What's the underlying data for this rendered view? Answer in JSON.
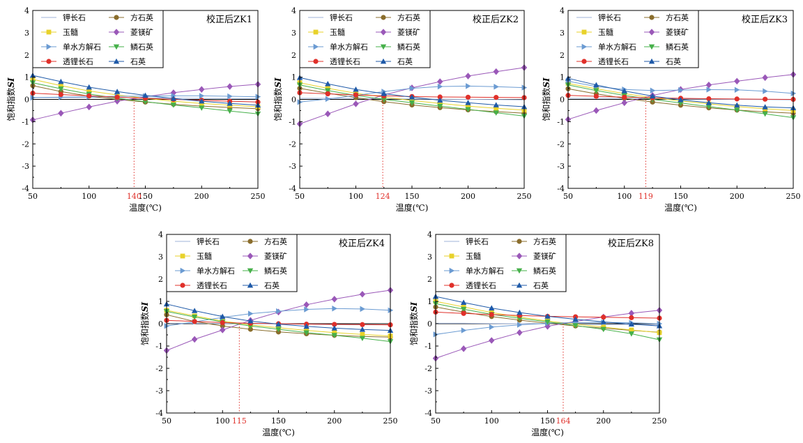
{
  "figure": {
    "xlabel": "温度(℃)",
    "ylabel_main": "饱和指数",
    "ylabel_italic": "SI"
  },
  "legend_labels": [
    "钾长石",
    "方石英",
    "玉髓",
    "菱镁矿",
    "单水方解石",
    "鳞石英",
    "透锂长石",
    "石英"
  ],
  "colors": {
    "钾长石": "#9fb3d9",
    "方石英": "#8a6d2c",
    "玉髓": "#e8d22a",
    "菱镁矿": "#9a58b8",
    "单水方解石": "#6b9bd2",
    "鳞石英": "#46b04a",
    "透锂长石": "#e0302a",
    "石英": "#1f5aa8",
    "intersection": "#e0302a"
  },
  "chart_data": [
    {
      "type": "line",
      "title": "校正后ZK1",
      "x": [
        50,
        75,
        100,
        125,
        150,
        175,
        200,
        225,
        250
      ],
      "xticks": [
        50,
        100,
        150,
        200,
        250
      ],
      "ylim": [
        -4,
        4
      ],
      "xlim": [
        50,
        250
      ],
      "intersection_x": 140,
      "series": [
        {
          "name": "钾长石",
          "values": [
            0.08,
            0.08,
            0.08,
            0.08,
            0.07,
            0.06,
            0.05,
            0.04,
            0.03
          ]
        },
        {
          "name": "方石英",
          "values": [
            0.62,
            0.35,
            0.15,
            0.0,
            -0.12,
            -0.22,
            -0.3,
            -0.36,
            -0.42
          ]
        },
        {
          "name": "玉髓",
          "values": [
            0.9,
            0.62,
            0.38,
            0.2,
            0.05,
            -0.08,
            -0.18,
            -0.26,
            -0.33
          ]
        },
        {
          "name": "菱镁矿",
          "values": [
            -0.92,
            -0.62,
            -0.34,
            -0.08,
            0.12,
            0.3,
            0.45,
            0.58,
            0.68
          ]
        },
        {
          "name": "单水方解石",
          "values": [
            0.08,
            0.1,
            0.12,
            0.14,
            0.15,
            0.16,
            0.16,
            0.14,
            0.12
          ]
        },
        {
          "name": "鳞石英",
          "values": [
            0.75,
            0.48,
            0.24,
            0.05,
            -0.1,
            -0.25,
            -0.38,
            -0.52,
            -0.65
          ]
        },
        {
          "name": "透锂长石",
          "values": [
            0.28,
            0.22,
            0.16,
            0.1,
            0.05,
            0.0,
            -0.04,
            -0.08,
            -0.12
          ]
        },
        {
          "name": "石英",
          "values": [
            1.08,
            0.8,
            0.55,
            0.35,
            0.18,
            0.04,
            -0.08,
            -0.18,
            -0.26
          ]
        }
      ]
    },
    {
      "type": "line",
      "title": "校正后ZK2",
      "x": [
        50,
        75,
        100,
        125,
        150,
        175,
        200,
        225,
        250
      ],
      "xticks": [
        50,
        100,
        150,
        200,
        250
      ],
      "ylim": [
        -4,
        4
      ],
      "xlim": [
        50,
        250
      ],
      "intersection_x": 124,
      "series": [
        {
          "name": "钾长石",
          "values": [
            0.05,
            0.05,
            0.04,
            0.03,
            0.02,
            0.01,
            0.0,
            -0.01,
            -0.02
          ]
        },
        {
          "name": "方石英",
          "values": [
            0.5,
            0.28,
            0.08,
            -0.1,
            -0.25,
            -0.37,
            -0.47,
            -0.55,
            -0.62
          ]
        },
        {
          "name": "玉髓",
          "values": [
            0.75,
            0.5,
            0.28,
            0.1,
            -0.05,
            -0.18,
            -0.3,
            -0.4,
            -0.48
          ]
        },
        {
          "name": "菱镁矿",
          "values": [
            -1.1,
            -0.65,
            -0.2,
            0.2,
            0.52,
            0.8,
            1.05,
            1.25,
            1.43
          ]
        },
        {
          "name": "单水方解石",
          "values": [
            -0.12,
            0.02,
            0.18,
            0.35,
            0.5,
            0.58,
            0.6,
            0.57,
            0.53
          ]
        },
        {
          "name": "鳞石英",
          "values": [
            0.65,
            0.4,
            0.18,
            0.0,
            -0.15,
            -0.3,
            -0.45,
            -0.6,
            -0.75
          ]
        },
        {
          "name": "透锂长石",
          "values": [
            0.3,
            0.25,
            0.2,
            0.16,
            0.13,
            0.11,
            0.1,
            0.09,
            0.08
          ]
        },
        {
          "name": "石英",
          "values": [
            0.98,
            0.7,
            0.45,
            0.26,
            0.1,
            -0.04,
            -0.15,
            -0.25,
            -0.33
          ]
        }
      ]
    },
    {
      "type": "line",
      "title": "校正后ZK3",
      "x": [
        50,
        75,
        100,
        125,
        150,
        175,
        200,
        225,
        250
      ],
      "xticks": [
        50,
        100,
        150,
        200,
        250
      ],
      "ylim": [
        -4,
        4
      ],
      "xlim": [
        50,
        250
      ],
      "intersection_x": 119,
      "series": [
        {
          "name": "钾长石",
          "values": [
            0.05,
            0.05,
            0.04,
            0.03,
            0.02,
            0.01,
            0.0,
            -0.01,
            -0.02
          ]
        },
        {
          "name": "方石英",
          "values": [
            0.48,
            0.25,
            0.05,
            -0.12,
            -0.26,
            -0.38,
            -0.48,
            -0.56,
            -0.62
          ]
        },
        {
          "name": "玉髓",
          "values": [
            0.72,
            0.48,
            0.26,
            0.08,
            -0.07,
            -0.2,
            -0.32,
            -0.42,
            -0.5
          ]
        },
        {
          "name": "菱镁矿",
          "values": [
            -0.9,
            -0.5,
            -0.15,
            0.18,
            0.45,
            0.65,
            0.82,
            0.98,
            1.12
          ]
        },
        {
          "name": "单水方解石",
          "values": [
            0.82,
            0.58,
            0.45,
            0.4,
            0.42,
            0.44,
            0.43,
            0.37,
            0.27
          ]
        },
        {
          "name": "鳞石英",
          "values": [
            0.65,
            0.4,
            0.18,
            0.0,
            -0.16,
            -0.32,
            -0.48,
            -0.65,
            -0.82
          ]
        },
        {
          "name": "透锂长石",
          "values": [
            0.18,
            0.14,
            0.1,
            0.07,
            0.05,
            0.03,
            0.02,
            0.01,
            0.0
          ]
        },
        {
          "name": "石英",
          "values": [
            0.95,
            0.65,
            0.38,
            0.15,
            -0.02,
            -0.15,
            -0.26,
            -0.34,
            -0.38
          ]
        }
      ]
    },
    {
      "type": "line",
      "title": "校正后ZK4",
      "x": [
        50,
        75,
        100,
        125,
        150,
        175,
        200,
        225,
        250
      ],
      "xticks": [
        50,
        100,
        150,
        200,
        250
      ],
      "ylim": [
        -4,
        4
      ],
      "xlim": [
        50,
        250
      ],
      "intersection_x": 115,
      "series": [
        {
          "name": "钾长石",
          "values": [
            0.02,
            0.02,
            0.01,
            0.0,
            -0.01,
            -0.02,
            -0.03,
            -0.04,
            -0.05
          ]
        },
        {
          "name": "方石英",
          "values": [
            0.4,
            0.1,
            -0.1,
            -0.25,
            -0.37,
            -0.45,
            -0.52,
            -0.57,
            -0.6
          ]
        },
        {
          "name": "玉髓",
          "values": [
            0.6,
            0.35,
            0.12,
            -0.05,
            -0.18,
            -0.3,
            -0.4,
            -0.48,
            -0.55
          ]
        },
        {
          "name": "菱镁矿",
          "values": [
            -1.2,
            -0.7,
            -0.28,
            0.15,
            0.52,
            0.85,
            1.1,
            1.32,
            1.5
          ]
        },
        {
          "name": "单水方解石",
          "values": [
            -0.1,
            0.08,
            0.28,
            0.45,
            0.56,
            0.64,
            0.68,
            0.66,
            0.6
          ]
        },
        {
          "name": "鳞石英",
          "values": [
            0.55,
            0.3,
            0.08,
            -0.1,
            -0.25,
            -0.4,
            -0.52,
            -0.65,
            -0.8
          ]
        },
        {
          "name": "透锂长石",
          "values": [
            0.15,
            0.1,
            0.05,
            0.02,
            0.0,
            -0.02,
            -0.03,
            -0.04,
            -0.05
          ]
        },
        {
          "name": "石英",
          "values": [
            0.88,
            0.58,
            0.32,
            0.12,
            -0.02,
            -0.12,
            -0.2,
            -0.26,
            -0.3
          ]
        }
      ]
    },
    {
      "type": "line",
      "title": "校正后ZK8",
      "x": [
        50,
        75,
        100,
        125,
        150,
        175,
        200,
        225,
        250
      ],
      "xticks": [
        50,
        100,
        150,
        200,
        250
      ],
      "ylim": [
        -4,
        4
      ],
      "xlim": [
        50,
        250
      ],
      "intersection_x": 164,
      "series": [
        {
          "name": "钾长石",
          "values": [
            0.02,
            0.02,
            0.01,
            0.0,
            -0.01,
            -0.02,
            -0.03,
            -0.04,
            -0.05
          ]
        },
        {
          "name": "方石英",
          "values": [
            0.75,
            0.52,
            0.32,
            0.16,
            0.02,
            -0.1,
            -0.2,
            -0.3,
            -0.38
          ]
        },
        {
          "name": "玉髓",
          "values": [
            1.0,
            0.75,
            0.5,
            0.3,
            0.12,
            -0.02,
            -0.15,
            -0.28,
            -0.4
          ]
        },
        {
          "name": "菱镁矿",
          "values": [
            -1.55,
            -1.12,
            -0.75,
            -0.4,
            -0.12,
            0.1,
            0.3,
            0.47,
            0.6
          ]
        },
        {
          "name": "单水方解石",
          "values": [
            -0.48,
            -0.3,
            -0.15,
            -0.05,
            0.02,
            0.05,
            0.06,
            0.04,
            0.0
          ]
        },
        {
          "name": "鳞石英",
          "values": [
            0.9,
            0.65,
            0.42,
            0.24,
            0.08,
            -0.08,
            -0.25,
            -0.45,
            -0.72
          ]
        },
        {
          "name": "透锂长石",
          "values": [
            0.52,
            0.46,
            0.41,
            0.37,
            0.33,
            0.31,
            0.29,
            0.27,
            0.25
          ]
        },
        {
          "name": "石英",
          "values": [
            1.22,
            0.95,
            0.7,
            0.5,
            0.33,
            0.2,
            0.08,
            -0.02,
            -0.1
          ]
        }
      ]
    }
  ]
}
